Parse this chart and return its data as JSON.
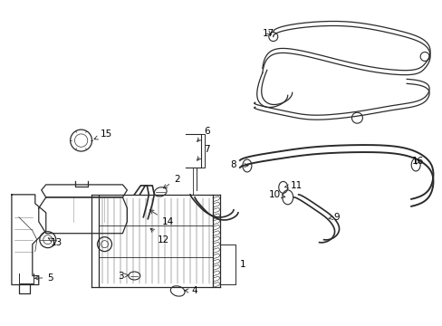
{
  "bg_color": "#ffffff",
  "line_color": "#2a2a2a",
  "text_color": "#000000",
  "fig_width": 4.89,
  "fig_height": 3.6,
  "dpi": 100,
  "label_fontsize": 7.5,
  "arrow_lw": 0.6,
  "part_lw": 0.9
}
